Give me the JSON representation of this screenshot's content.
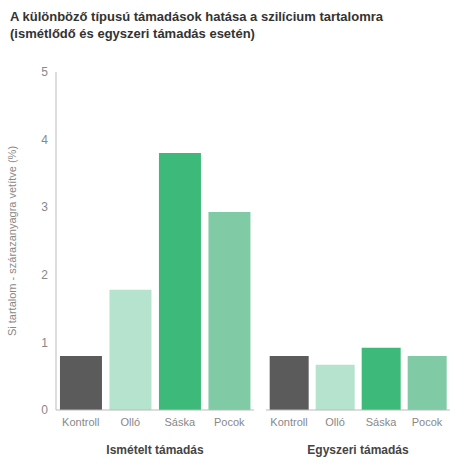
{
  "chart_data": {
    "type": "bar",
    "title": "A különböző típusú támadások hatása a szilícium tartalomra (ismétlődő és egyszeri támadás esetén)",
    "y_label": "Si tartalom - szárazanyagra vetítve (%)",
    "groups": [
      {
        "name": "Ismételt támadás",
        "categories": [
          "Kontroll",
          "Olló",
          "Sáska",
          "Pocok"
        ],
        "values": [
          0.8,
          1.78,
          3.8,
          2.93
        ]
      },
      {
        "name": "Egyszeri támadás",
        "categories": [
          "Kontroll",
          "Olló",
          "Sáska",
          "Pocok"
        ],
        "values": [
          0.8,
          0.67,
          0.92,
          0.8
        ]
      }
    ],
    "colors": [
      "#5b5b5b",
      "#b5e3cd",
      "#3dba79",
      "#80cba6"
    ],
    "ylim": [
      0,
      5
    ],
    "yticks": [
      0,
      1,
      2,
      3,
      4,
      5
    ],
    "grid": false
  }
}
